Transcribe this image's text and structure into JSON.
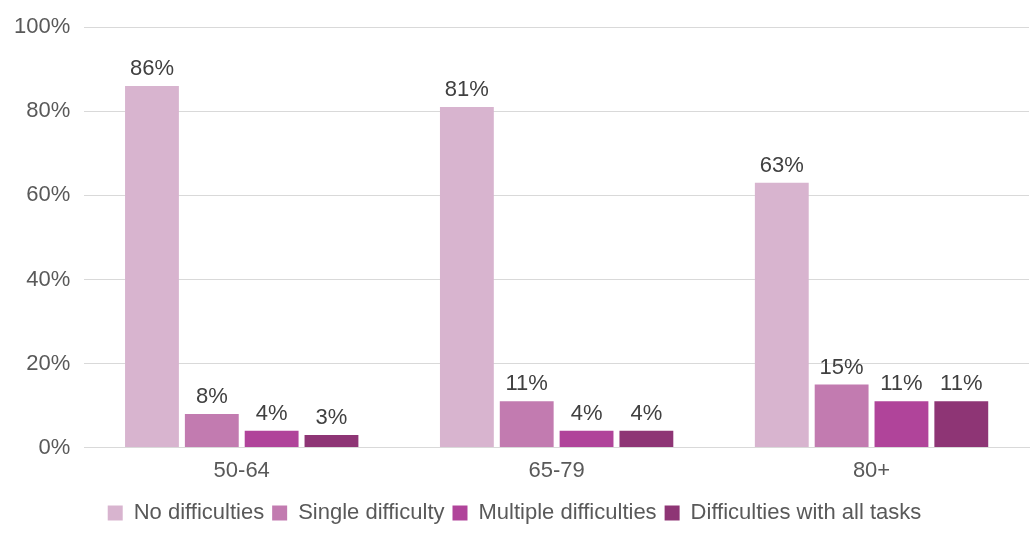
{
  "chart_data": {
    "type": "bar",
    "categories": [
      "50-64",
      "65-79",
      "80+"
    ],
    "series": [
      {
        "name": "No difficulties",
        "color": "#d8b4cf",
        "values": [
          86,
          81,
          63
        ],
        "value_labels": [
          "86%",
          "81%",
          "63%"
        ]
      },
      {
        "name": "Single difficulty",
        "color": "#c27bb0",
        "values": [
          8,
          11,
          15
        ],
        "value_labels": [
          "8%",
          "11%",
          "15%"
        ]
      },
      {
        "name": "Multiple difficulties",
        "color": "#b0449a",
        "values": [
          4,
          4,
          11
        ],
        "value_labels": [
          "4%",
          "4%",
          "11%"
        ]
      },
      {
        "name": "Difficulties with all tasks",
        "color": "#8e3575",
        "values": [
          3,
          4,
          11
        ],
        "value_labels": [
          "3%",
          "4%",
          "11%"
        ]
      }
    ],
    "ylim": [
      0,
      100
    ],
    "yticks": [
      {
        "value": 0,
        "label": "0%"
      },
      {
        "value": 20,
        "label": "20%"
      },
      {
        "value": 40,
        "label": "40%"
      },
      {
        "value": 60,
        "label": "60%"
      },
      {
        "value": 80,
        "label": "80%"
      },
      {
        "value": 100,
        "label": "100%"
      }
    ],
    "grid": "y",
    "legend": "bottom"
  }
}
